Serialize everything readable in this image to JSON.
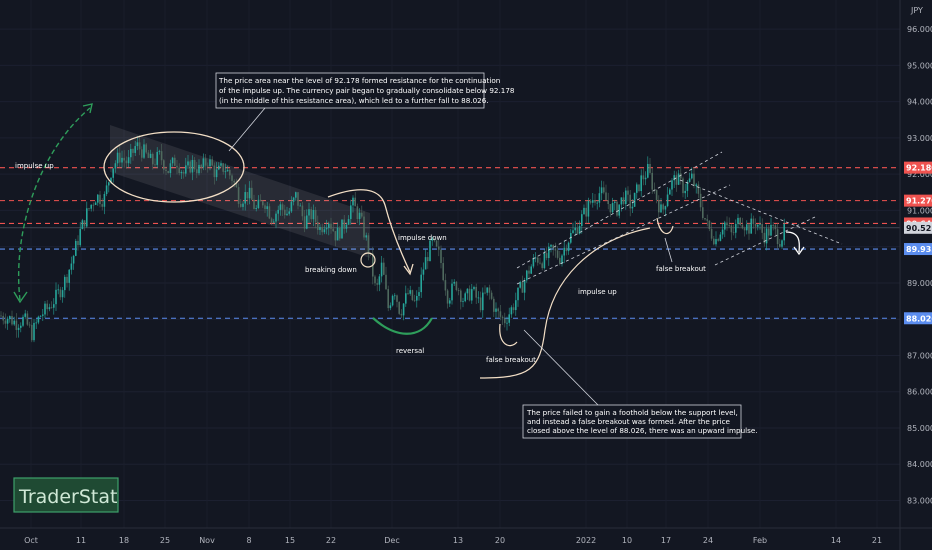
{
  "chart_data": {
    "type": "candlestick",
    "currency_label": "JPY",
    "ylim": [
      82.6,
      96.5
    ],
    "y_ticks": [
      83.0,
      84.0,
      85.0,
      86.0,
      87.0,
      88.0,
      89.0,
      90.0,
      91.0,
      92.0,
      93.0,
      94.0,
      95.0,
      96.0
    ],
    "y_tick_labels": [
      "83.000",
      "84.000",
      "85.000",
      "86.000",
      "87.000",
      "88.000",
      "89.000",
      "90.000",
      "91.000",
      "92.000",
      "93.000",
      "94.000",
      "95.000",
      "96.000"
    ],
    "x_ticks": [
      "Oct",
      "11",
      "18",
      "25",
      "Nov",
      "8",
      "15",
      "22",
      "Dec",
      "13",
      "20",
      "2022",
      "10",
      "17",
      "24",
      "Feb",
      "14",
      "21"
    ],
    "levels": [
      {
        "label": "92.180",
        "value": 92.18,
        "color": "#ef5350"
      },
      {
        "label": "91.270",
        "value": 91.27,
        "color": "#ef5350"
      },
      {
        "label": "90.640",
        "value": 90.64,
        "color": "#ef5350"
      },
      {
        "label": "89.935",
        "value": 89.935,
        "color": "#5b8def"
      },
      {
        "label": "88.026",
        "value": 88.026,
        "color": "#5b8def"
      }
    ],
    "current_price": {
      "label": "90.521",
      "value": 90.521
    },
    "price_path": [
      [
        0,
        88.1
      ],
      [
        8,
        88.05
      ],
      [
        16,
        87.9
      ],
      [
        24,
        88.0
      ],
      [
        32,
        87.6
      ],
      [
        40,
        88.1
      ],
      [
        48,
        88.3
      ],
      [
        56,
        88.6
      ],
      [
        64,
        89.0
      ],
      [
        72,
        89.6
      ],
      [
        80,
        90.4
      ],
      [
        88,
        91.0
      ],
      [
        96,
        91.4
      ],
      [
        104,
        91.3
      ],
      [
        112,
        92.2
      ],
      [
        120,
        92.5
      ],
      [
        128,
        92.3
      ],
      [
        136,
        92.8
      ],
      [
        144,
        92.6
      ],
      [
        152,
        92.3
      ],
      [
        160,
        92.5
      ],
      [
        168,
        92.1
      ],
      [
        176,
        92.4
      ],
      [
        184,
        92.0
      ],
      [
        192,
        92.3
      ],
      [
        200,
        92.1
      ],
      [
        208,
        92.4
      ],
      [
        216,
        92.0
      ],
      [
        224,
        92.2
      ],
      [
        232,
        91.9
      ],
      [
        240,
        91.3
      ],
      [
        248,
        91.5
      ],
      [
        256,
        91.0
      ],
      [
        264,
        91.3
      ],
      [
        272,
        90.8
      ],
      [
        280,
        91.1
      ],
      [
        288,
        90.9
      ],
      [
        296,
        91.4
      ],
      [
        304,
        90.7
      ],
      [
        312,
        90.9
      ],
      [
        320,
        90.5
      ],
      [
        328,
        90.8
      ],
      [
        336,
        90.3
      ],
      [
        344,
        90.6
      ],
      [
        352,
        91.2
      ],
      [
        360,
        90.8
      ],
      [
        368,
        90.0
      ],
      [
        372,
        89.4
      ],
      [
        376,
        88.7
      ],
      [
        382,
        89.5
      ],
      [
        388,
        88.3
      ],
      [
        394,
        88.9
      ],
      [
        400,
        88.2
      ],
      [
        408,
        88.7
      ],
      [
        416,
        88.4
      ],
      [
        424,
        89.5
      ],
      [
        432,
        90.1
      ],
      [
        440,
        89.7
      ],
      [
        448,
        88.6
      ],
      [
        456,
        89.0
      ],
      [
        464,
        88.5
      ],
      [
        472,
        88.8
      ],
      [
        480,
        88.4
      ],
      [
        488,
        88.8
      ],
      [
        496,
        88.2
      ],
      [
        504,
        87.95
      ],
      [
        512,
        88.3
      ],
      [
        520,
        88.8
      ],
      [
        528,
        89.3
      ],
      [
        536,
        89.7
      ],
      [
        544,
        89.6
      ],
      [
        552,
        89.9
      ],
      [
        560,
        89.7
      ],
      [
        568,
        90.2
      ],
      [
        576,
        90.5
      ],
      [
        584,
        90.9
      ],
      [
        592,
        91.3
      ],
      [
        600,
        91.5
      ],
      [
        608,
        91.2
      ],
      [
        616,
        91.0
      ],
      [
        624,
        91.4
      ],
      [
        632,
        91.1
      ],
      [
        640,
        91.8
      ],
      [
        648,
        92.1
      ],
      [
        656,
        91.4
      ],
      [
        662,
        90.9
      ],
      [
        668,
        91.6
      ],
      [
        676,
        91.9
      ],
      [
        684,
        91.6
      ],
      [
        692,
        91.9
      ],
      [
        700,
        91.2
      ],
      [
        708,
        90.5
      ],
      [
        716,
        90.2
      ],
      [
        724,
        90.7
      ],
      [
        732,
        90.3
      ],
      [
        740,
        90.8
      ],
      [
        748,
        90.5
      ],
      [
        756,
        90.7
      ],
      [
        764,
        90.3
      ],
      [
        772,
        90.5
      ],
      [
        780,
        90.2
      ],
      [
        786,
        90.5
      ]
    ]
  },
  "annotations": {
    "impulse_up_left": "impulse up",
    "breaking_down": "breaking down",
    "impulse_down": "impulse down",
    "reversal": "reversal",
    "false_breakout_1": "false breakout",
    "impulse_up_right": "impulse up",
    "false_breakout_2": "false breakout"
  },
  "note_top": {
    "lines": [
      "The price area near the level of 92.178 formed resistance for the continuation",
      "of the impulse up. The currency pair began to gradually consolidate below 92.178",
      "(in the middle of this resistance area), which led to a further fall to 88.026."
    ]
  },
  "note_bottom": {
    "lines": [
      "The price failed to gain a foothold below the support level,",
      "and instead a false breakout was formed. After the price",
      "closed above the level of 88.026, there was an upward impulse."
    ]
  },
  "logo": {
    "text": "TraderStat"
  },
  "colors": {
    "background": "#131722",
    "up": "#26a69a",
    "down": "#4f6a5e",
    "resistance": "#ef5350",
    "support": "#5b8def",
    "green_arrow": "#2e9e5b"
  }
}
